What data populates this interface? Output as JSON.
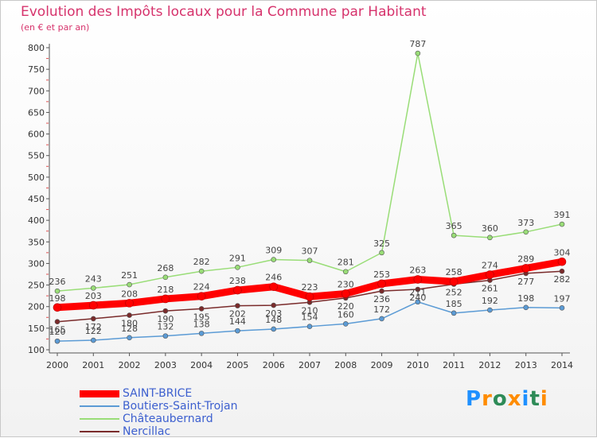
{
  "header": {
    "title": "Evolution des Impôts locaux pour la Commune par Habitant",
    "subtitle": "(en € et par an)"
  },
  "logo": {
    "text": "Proxiti",
    "colors": [
      "#1e90ff",
      "#ff8c00",
      "#2e8b57",
      "#ff8c00",
      "#1e90ff",
      "#2e8b57",
      "#ff8c00"
    ]
  },
  "chart_data": {
    "type": "line",
    "x": [
      2000,
      2001,
      2002,
      2003,
      2004,
      2005,
      2006,
      2007,
      2008,
      2009,
      2010,
      2011,
      2012,
      2013,
      2014
    ],
    "ylim": [
      100,
      800
    ],
    "yticks": [
      100,
      150,
      200,
      250,
      300,
      350,
      400,
      450,
      500,
      550,
      600,
      650,
      700,
      750,
      800
    ],
    "grid": false,
    "legend_position": "bottom-left",
    "series": [
      {
        "name": "SAINT-BRICE",
        "color": "#ff0000",
        "line_width": 9,
        "values": [
          198,
          203,
          208,
          218,
          224,
          238,
          246,
          223,
          230,
          253,
          263,
          258,
          274,
          289,
          304
        ],
        "labels": [
          "198",
          "203",
          "208",
          "218",
          "224",
          "238",
          "246",
          "223",
          "230",
          "253",
          "263",
          "258",
          "274",
          "289",
          "304"
        ]
      },
      {
        "name": "Boutiers-Saint-Trojan",
        "color": "#5b9bd5",
        "line_width": 1.5,
        "values": [
          120,
          122,
          128,
          132,
          138,
          144,
          148,
          154,
          160,
          172,
          211,
          185,
          192,
          198,
          197
        ],
        "labels": [
          "120",
          "122",
          "128",
          "132",
          "138",
          "144",
          "148",
          "154",
          "160",
          "172",
          "211",
          "185",
          "192",
          "198",
          "197"
        ]
      },
      {
        "name": "Châteaubernard",
        "color": "#99dd77",
        "line_width": 1.5,
        "values": [
          236,
          243,
          251,
          268,
          282,
          291,
          309,
          307,
          281,
          325,
          787,
          365,
          360,
          373,
          391
        ],
        "labels": [
          "236",
          "243",
          "251",
          "268",
          "282",
          "291",
          "309",
          "307",
          "281",
          "325",
          "787",
          "365",
          "360",
          "373",
          "391"
        ]
      },
      {
        "name": "Nercillac",
        "color": "#7a2b2b",
        "line_width": 1.5,
        "values": [
          165,
          172,
          180,
          190,
          195,
          202,
          203,
          210,
          220,
          236,
          240,
          252,
          261,
          277,
          282
        ],
        "labels": [
          "165",
          "172",
          "180",
          "190",
          "195",
          "202",
          "203",
          "210",
          "220",
          "236",
          "240",
          "252",
          "261",
          "277",
          "282"
        ]
      }
    ]
  }
}
